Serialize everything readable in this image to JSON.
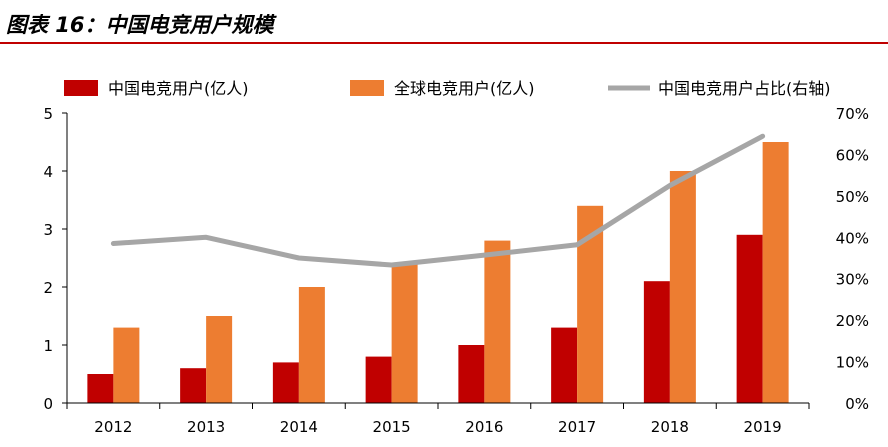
{
  "header": {
    "title": "图表 16：中国电竞用户规模"
  },
  "chart_data": {
    "type": "bar",
    "categories": [
      "2012",
      "2013",
      "2014",
      "2015",
      "2016",
      "2017",
      "2018",
      "2019"
    ],
    "series": [
      {
        "name": "中国电竞用户(亿人)",
        "type": "bar",
        "axis": "left",
        "color": "#c00000",
        "values": [
          0.5,
          0.6,
          0.7,
          0.8,
          1.0,
          1.3,
          2.1,
          2.9
        ]
      },
      {
        "name": "全球电竞用户(亿人)",
        "type": "bar",
        "axis": "left",
        "color": "#ed7d31",
        "values": [
          1.3,
          1.5,
          2.0,
          2.4,
          2.8,
          3.4,
          4.0,
          4.5
        ]
      },
      {
        "name": "中国电竞用户占比(右轴)",
        "type": "line",
        "axis": "right",
        "color": "#a6a6a6",
        "values": [
          38.5,
          40.0,
          35.0,
          33.3,
          35.7,
          38.2,
          52.5,
          64.4
        ]
      }
    ],
    "y_left": {
      "min": 0,
      "max": 5,
      "ticks": [
        "0",
        "1",
        "2",
        "3",
        "4",
        "5"
      ]
    },
    "y_right": {
      "min": 0,
      "max": 70,
      "ticks": [
        "0%",
        "10%",
        "20%",
        "30%",
        "40%",
        "50%",
        "60%",
        "70%"
      ]
    },
    "legend_position": "top",
    "grid": false
  }
}
